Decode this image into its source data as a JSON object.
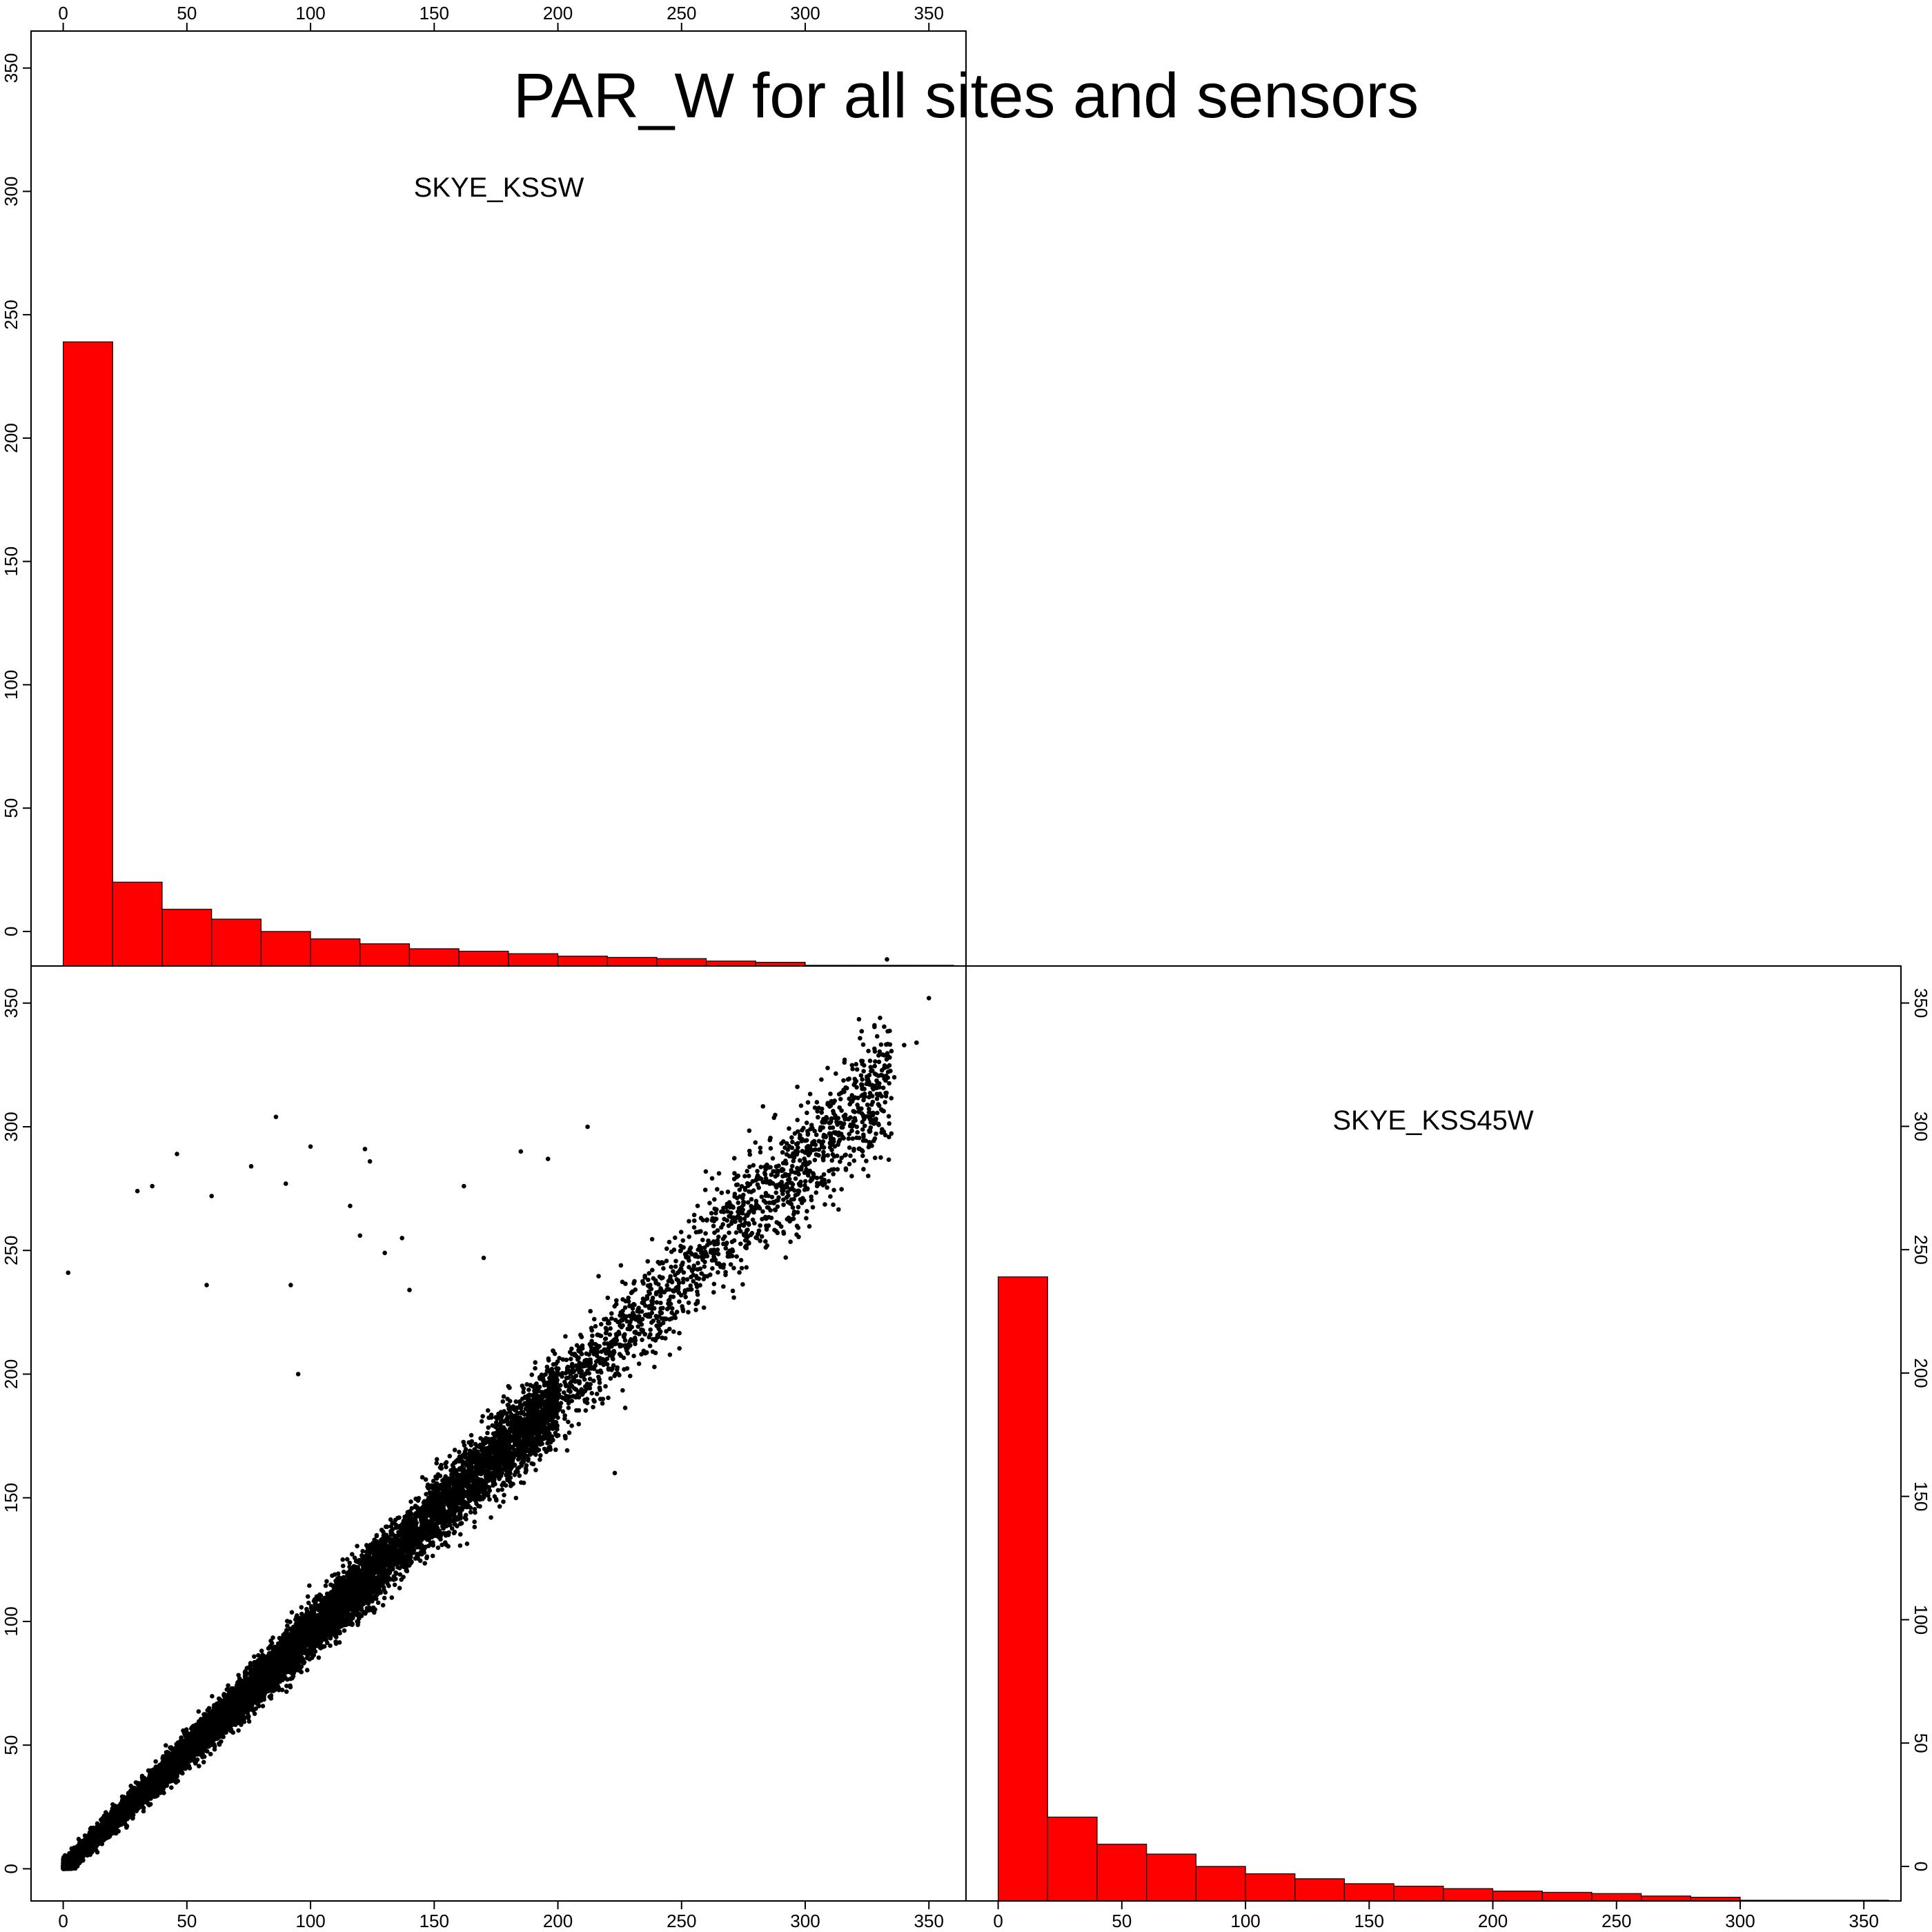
{
  "title": "PAR_W for all sites and sensors",
  "chart_data": [
    {
      "type": "bar",
      "panel": "diagonal-top-left",
      "label": "SKYE_KSSW",
      "bin_edges": [
        0,
        20,
        40,
        60,
        80,
        100,
        120,
        140,
        160,
        180,
        200,
        220,
        240,
        260,
        280,
        300,
        320,
        340,
        360
      ],
      "values": [
        239,
        20,
        9,
        5,
        0,
        -3,
        -5,
        -7,
        -8,
        -9,
        -10,
        -10.5,
        -11,
        -12,
        -12.5,
        -14,
        -16.7,
        -16.9
      ],
      "bar_color": "#ff0000",
      "xlim": [
        -13,
        365
      ],
      "ylim": [
        -14,
        365
      ],
      "xticks": [
        0,
        50,
        100,
        150,
        200,
        250,
        300,
        350
      ],
      "yticks": [
        0,
        50,
        100,
        150,
        200,
        250,
        300,
        350
      ],
      "xaxis_side": "top",
      "yaxis_side": "left"
    },
    {
      "type": "scatter",
      "panel": "lower-left",
      "x_variable": "SKYE_KSSW",
      "y_variable": "SKYE_KSS45W",
      "point_color": "#000000",
      "approx_points": 14000,
      "trend": {
        "slope": 0.955,
        "intercept": 0
      },
      "x": [
        1,
        5,
        10,
        20,
        30,
        40,
        50,
        60,
        75,
        90,
        100,
        120,
        140,
        160,
        180,
        200,
        220,
        240,
        260,
        280,
        300,
        320,
        330,
        336,
        340,
        345,
        350,
        2,
        30,
        36,
        46,
        58,
        60,
        76,
        86,
        90,
        92,
        95,
        100,
        116,
        120,
        122,
        124,
        130,
        137,
        140,
        162,
        170,
        185,
        196,
        178,
        212,
        221,
        223
      ],
      "y": [
        0,
        4,
        9,
        19,
        29,
        38,
        48,
        57,
        72,
        86,
        96,
        115,
        134,
        153,
        172,
        191,
        210,
        229,
        248,
        267,
        286,
        306,
        316,
        320,
        333,
        334,
        352,
        241,
        274,
        276,
        289,
        236,
        272,
        284,
        304,
        277,
        236,
        200,
        292,
        268,
        256,
        291,
        286,
        249,
        255,
        234,
        276,
        247,
        290,
        287,
        156,
        300,
        216,
        160
      ],
      "xlim": [
        -13,
        365
      ],
      "ylim": [
        -13,
        365
      ],
      "xticks": [
        0,
        50,
        100,
        150,
        200,
        250,
        300,
        350
      ],
      "yticks": [
        0,
        50,
        100,
        150,
        200,
        250,
        300,
        350
      ],
      "xaxis_side": "bottom",
      "yaxis_side": "left"
    },
    {
      "type": "bar",
      "panel": "diagonal-bottom-right",
      "label": "SKYE_KSS45W",
      "bin_edges": [
        0,
        20,
        40,
        60,
        80,
        100,
        120,
        140,
        160,
        180,
        200,
        220,
        240,
        260,
        280,
        300,
        320,
        340,
        360
      ],
      "values": [
        239,
        20,
        9,
        5,
        0,
        -3,
        -5,
        -7,
        -8,
        -9,
        -10,
        -10.5,
        -11,
        -12,
        -12.5,
        -14,
        -16.7,
        -16.9
      ],
      "bar_color": "#ff0000",
      "xlim": [
        -13,
        365
      ],
      "ylim": [
        -14,
        365
      ],
      "xticks": [
        0,
        50,
        100,
        150,
        200,
        250,
        300,
        350
      ],
      "yticks": [
        0,
        50,
        100,
        150,
        200,
        250,
        300,
        350
      ],
      "xaxis_side": "bottom",
      "yaxis_side": "right"
    }
  ]
}
